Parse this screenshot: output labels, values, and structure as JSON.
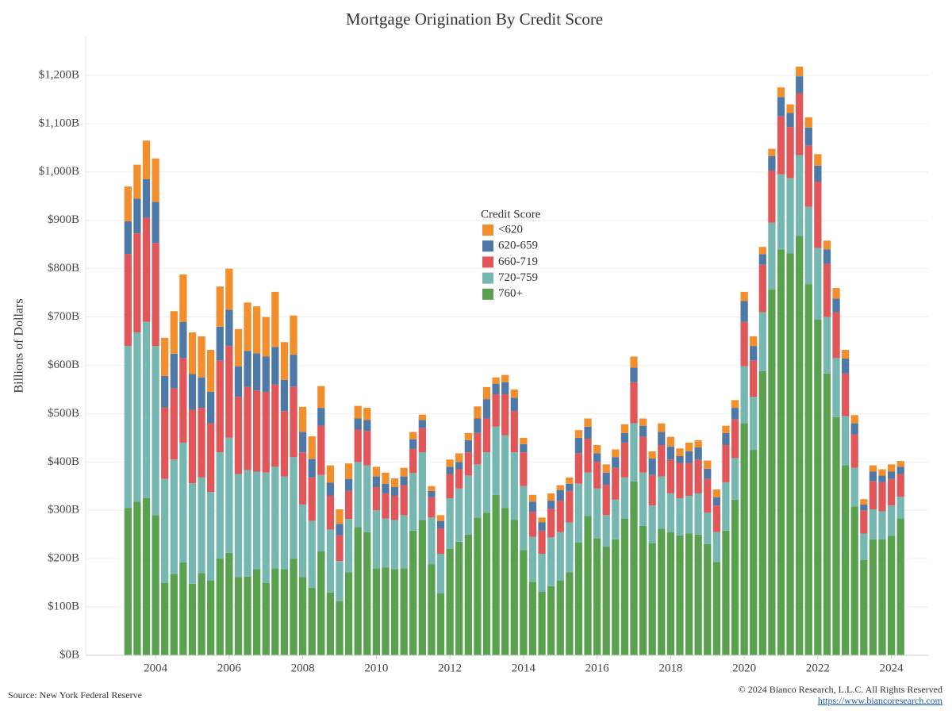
{
  "chart_data": {
    "type": "stacked_bar",
    "title": "Mortgage Origination By Credit Score",
    "y_label": "Billions of Dollars",
    "legend_title": "Credit Score",
    "source": "Source: New York Federal Reserve",
    "copyright": "© 2024 Bianco Research, L.L.C. All Rights Reserved",
    "url": "https://www.biancoresearch.com",
    "grid": true,
    "xlim": [
      2002.1,
      2025.0
    ],
    "xticks": [
      2004,
      2006,
      2008,
      2010,
      2012,
      2014,
      2016,
      2018,
      2020,
      2022,
      2024
    ],
    "ylim": [
      0,
      1282
    ],
    "yticks": [
      {
        "value": 0,
        "label": "$0B"
      },
      {
        "value": 100,
        "label": "$100B"
      },
      {
        "value": 200,
        "label": "$200B"
      },
      {
        "value": 300,
        "label": "$300B"
      },
      {
        "value": 400,
        "label": "$400B"
      },
      {
        "value": 500,
        "label": "$500B"
      },
      {
        "value": 600,
        "label": "$600B"
      },
      {
        "value": 700,
        "label": "$700B"
      },
      {
        "value": 800,
        "label": "$800B"
      },
      {
        "value": 900,
        "label": "$900B"
      },
      {
        "value": 1000,
        "label": "$1,000B"
      },
      {
        "value": 1100,
        "label": "$1,100B"
      },
      {
        "value": 1200,
        "label": "$1,200B"
      }
    ],
    "x": [
      2003.25,
      2003.5,
      2003.75,
      2004,
      2004.25,
      2004.5,
      2004.75,
      2005,
      2005.25,
      2005.5,
      2005.75,
      2006,
      2006.25,
      2006.5,
      2006.75,
      2007,
      2007.25,
      2007.5,
      2007.75,
      2008,
      2008.25,
      2008.5,
      2008.75,
      2009,
      2009.25,
      2009.5,
      2009.75,
      2010,
      2010.25,
      2010.5,
      2010.75,
      2011,
      2011.25,
      2011.5,
      2011.75,
      2012,
      2012.25,
      2012.5,
      2012.75,
      2013,
      2013.25,
      2013.5,
      2013.75,
      2014,
      2014.25,
      2014.5,
      2014.75,
      2015,
      2015.25,
      2015.5,
      2015.75,
      2016,
      2016.25,
      2016.5,
      2016.75,
      2017,
      2017.25,
      2017.5,
      2017.75,
      2018,
      2018.25,
      2018.5,
      2018.75,
      2019,
      2019.25,
      2019.5,
      2019.75,
      2020,
      2020.25,
      2020.5,
      2020.75,
      2021,
      2021.25,
      2021.5,
      2021.75,
      2022,
      2022.25,
      2022.5,
      2022.75,
      2023,
      2023.25,
      2023.5,
      2023.75,
      2024,
      2024.25
    ],
    "series": [
      {
        "name": "<620",
        "color": "#f28e2b",
        "values": [
          72,
          70,
          80,
          90,
          79,
          88,
          98,
          86,
          85,
          87,
          83,
          85,
          77,
          100,
          97,
          82,
          114,
          78,
          81,
          52,
          47,
          45,
          36,
          30,
          32,
          26,
          25,
          20,
          23,
          18,
          18,
          15,
          11,
          10,
          12,
          15,
          18,
          15,
          25,
          25,
          13,
          15,
          17,
          13,
          14,
          10,
          15,
          10,
          13,
          16,
          17,
          17,
          17,
          16,
          18,
          23,
          15,
          15,
          18,
          20,
          16,
          18,
          15,
          17,
          16,
          15,
          16,
          19,
          20,
          15,
          15,
          20,
          18,
          20,
          21,
          24,
          18,
          22,
          18,
          17,
          11,
          13,
          13,
          15,
          12
        ]
      },
      {
        "name": "620-659",
        "color": "#4e79a7",
        "values": [
          68,
          72,
          80,
          85,
          65,
          72,
          75,
          74,
          63,
          65,
          70,
          75,
          63,
          75,
          77,
          73,
          78,
          65,
          66,
          42,
          38,
          37,
          27,
          24,
          25,
          23,
          23,
          22,
          20,
          18,
          18,
          20,
          17,
          13,
          16,
          15,
          15,
          25,
          30,
          40,
          22,
          25,
          28,
          17,
          21,
          17,
          17,
          22,
          15,
          32,
          25,
          18,
          25,
          22,
          20,
          30,
          23,
          34,
          27,
          27,
          14,
          24,
          25,
          21,
          17,
          25,
          24,
          43,
          30,
          22,
          30,
          40,
          29,
          35,
          37,
          33,
          30,
          28,
          31,
          23,
          12,
          20,
          14,
          15,
          15
        ]
      },
      {
        "name": "660-719",
        "color": "#e15759",
        "values": [
          190,
          205,
          215,
          213,
          148,
          147,
          175,
          152,
          144,
          142,
          190,
          190,
          160,
          172,
          168,
          167,
          170,
          135,
          146,
          108,
          90,
          102,
          70,
          53,
          58,
          67,
          71,
          48,
          52,
          50,
          62,
          50,
          50,
          42,
          52,
          50,
          40,
          48,
          65,
          70,
          67,
          85,
          85,
          70,
          52,
          48,
          59,
          65,
          65,
          63,
          70,
          55,
          63,
          66,
          72,
          85,
          74,
          63,
          65,
          70,
          73,
          68,
          70,
          70,
          55,
          77,
          80,
          92,
          75,
          98,
          108,
          120,
          106,
          128,
          127,
          137,
          110,
          95,
          88,
          69,
          48,
          58,
          60,
          55,
          47
        ]
      },
      {
        "name": "720-759",
        "color": "#76b7b2",
        "values": [
          335,
          350,
          365,
          350,
          215,
          237,
          248,
          208,
          198,
          183,
          220,
          238,
          213,
          220,
          202,
          228,
          210,
          192,
          210,
          150,
          138,
          158,
          130,
          83,
          110,
          135,
          138,
          120,
          101,
          102,
          110,
          119,
          140,
          97,
          82,
          105,
          110,
          122,
          110,
          125,
          141,
          150,
          140,
          132,
          93,
          78,
          101,
          100,
          103,
          122,
          90,
          103,
          65,
          82,
          85,
          120,
          110,
          78,
          108,
          80,
          77,
          78,
          85,
          65,
          62,
          100,
          86,
          118,
          110,
          122,
          138,
          155,
          155,
          167,
          160,
          148,
          117,
          122,
          102,
          80,
          55,
          62,
          58,
          63,
          45
        ]
      },
      {
        "name": "760+",
        "color": "#59a14f",
        "values": [
          305,
          318,
          325,
          290,
          150,
          168,
          192,
          148,
          170,
          155,
          200,
          212,
          162,
          163,
          178,
          150,
          180,
          178,
          200,
          162,
          140,
          215,
          130,
          112,
          172,
          265,
          255,
          180,
          182,
          178,
          180,
          258,
          280,
          188,
          128,
          220,
          235,
          250,
          285,
          295,
          332,
          305,
          280,
          218,
          152,
          132,
          143,
          155,
          172,
          233,
          288,
          242,
          225,
          240,
          283,
          360,
          268,
          232,
          262,
          255,
          248,
          252,
          250,
          230,
          193,
          258,
          322,
          480,
          425,
          588,
          757,
          840,
          832,
          868,
          768,
          695,
          583,
          493,
          393,
          308,
          197,
          240,
          240,
          247,
          283
        ]
      }
    ]
  }
}
